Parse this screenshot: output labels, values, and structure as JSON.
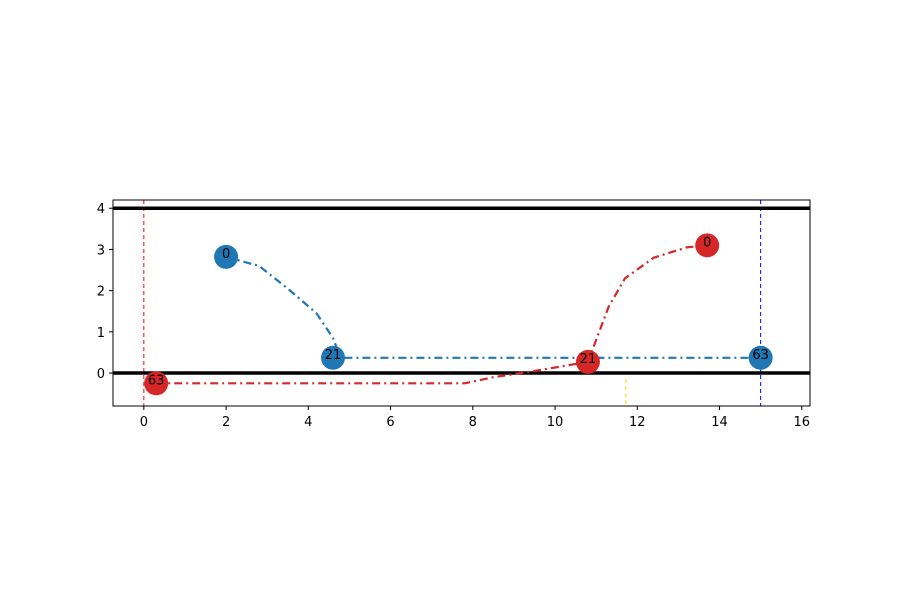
{
  "chart_data": {
    "type": "line",
    "title": "",
    "xlabel": "",
    "ylabel": "",
    "xlim": [
      -0.75,
      16.2
    ],
    "ylim": [
      -0.8,
      4.2
    ],
    "xticks": [
      0,
      2,
      4,
      6,
      8,
      10,
      12,
      14,
      16
    ],
    "yticks": [
      0,
      1,
      2,
      3,
      4
    ],
    "grid": false,
    "hlines": [
      {
        "y": 4.0,
        "color": "#000000"
      },
      {
        "y": 0.0,
        "color": "#000000"
      }
    ],
    "vlines": [
      {
        "x": 0.0,
        "color": "#ff0000",
        "style": "dashed",
        "ymin": -0.8,
        "ymax": 4.2
      },
      {
        "x": 15.0,
        "color": "#0000ff",
        "style": "dashed",
        "ymin": -0.8,
        "ymax": 4.2
      },
      {
        "x": 11.72,
        "color": "#ffd700",
        "style": "dashed",
        "ymin": -0.8,
        "ymax": -0.15
      }
    ],
    "series": [
      {
        "color": "#1f77b4",
        "style": "dashdot",
        "points": [
          [
            2.0,
            2.82
          ],
          [
            2.8,
            2.6
          ],
          [
            3.5,
            2.05
          ],
          [
            4.2,
            1.45
          ],
          [
            4.6,
            0.85
          ],
          [
            4.75,
            0.45
          ],
          [
            4.9,
            0.37
          ],
          [
            6.0,
            0.37
          ],
          [
            10.0,
            0.37
          ],
          [
            15.0,
            0.37
          ]
        ],
        "markers": [
          {
            "x": 2.0,
            "y": 2.82,
            "label": "0"
          },
          {
            "x": 4.6,
            "y": 0.37,
            "label": "21"
          },
          {
            "x": 15.0,
            "y": 0.37,
            "label": "63"
          }
        ]
      },
      {
        "color": "#d62728",
        "style": "dashdot",
        "points": [
          [
            0.3,
            -0.25
          ],
          [
            7.8,
            -0.25
          ],
          [
            8.5,
            -0.1
          ],
          [
            9.5,
            0.05
          ],
          [
            10.8,
            0.27
          ],
          [
            11.3,
            1.6
          ],
          [
            11.7,
            2.3
          ],
          [
            12.4,
            2.8
          ],
          [
            13.2,
            3.05
          ],
          [
            13.7,
            3.1
          ]
        ],
        "markers": [
          {
            "x": 0.3,
            "y": -0.25,
            "label": "63"
          },
          {
            "x": 10.8,
            "y": 0.27,
            "label": "21"
          },
          {
            "x": 13.7,
            "y": 3.1,
            "label": "0"
          }
        ]
      }
    ]
  }
}
